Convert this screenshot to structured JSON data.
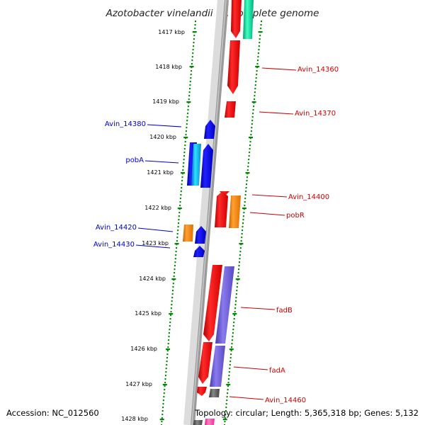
{
  "map": {
    "title": "Azotobacter vinelandii DJ, complete genome",
    "accession": "Accession: NC_012560",
    "summary": "Topology: circular; Length: 5,365,318 bp; Genes: 5,132"
  },
  "scale": {
    "unit": "kbp",
    "ticks": [
      "1417 kbp",
      "1418 kbp",
      "1419 kbp",
      "1420 kbp",
      "1421 kbp",
      "1422 kbp",
      "1423 kbp",
      "1424 kbp",
      "1425 kbp",
      "1426 kbp",
      "1427 kbp",
      "1428 kbp"
    ]
  },
  "gene_labels": {
    "forward": [
      "Avin_14380",
      "pobA",
      "Avin_14420",
      "Avin_14430"
    ],
    "reverse": [
      "Avin_14360",
      "Avin_14370",
      "Avin_14400",
      "pobR",
      "fadB",
      "fadA",
      "Avin_14460"
    ]
  },
  "colors": {
    "forward_label": "#0000cc",
    "reverse_label": "#cc0000",
    "backbone": "#808080",
    "scale_dots": "#008800",
    "red_gene": "#ff0000",
    "blue_gene": "#0000ee",
    "cyan_gene": "#00bbee",
    "orange_gene": "#ff8800",
    "purple_gene": "#6a5acd",
    "teal_gene": "#00cc88",
    "pink_gene": "#ff66bb",
    "gray_gene": "#555555"
  }
}
